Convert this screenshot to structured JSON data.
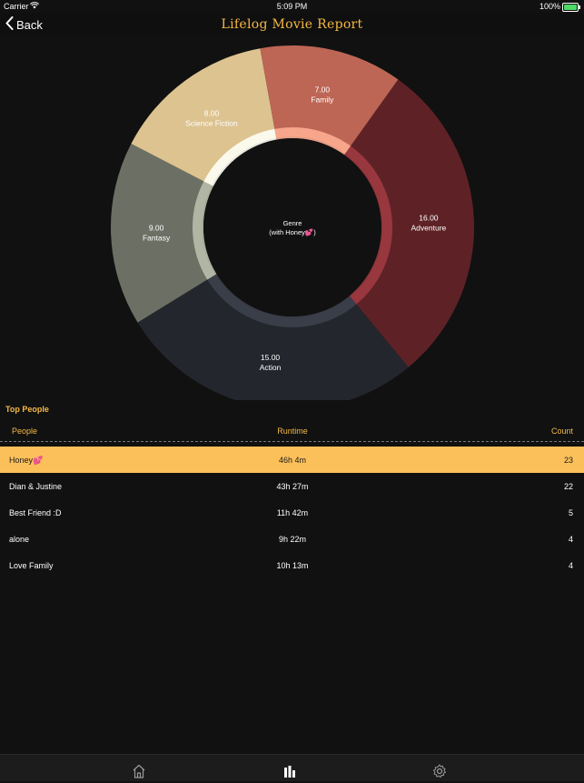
{
  "status_bar": {
    "carrier": "Carrier",
    "time": "5:09 PM",
    "battery": "100%"
  },
  "nav": {
    "back_label": "Back",
    "title": "Lifelog Movie Report"
  },
  "chart_data": {
    "type": "pie",
    "center_label": "Genre",
    "center_sublabel": "(with Honey💕)",
    "slices": [
      {
        "label": "Adventure",
        "value": 16.0,
        "value_text": "16.00",
        "color": "#5e2226"
      },
      {
        "label": "Action",
        "value": 15.0,
        "value_text": "15.00",
        "color": "#24262d"
      },
      {
        "label": "Fantasy",
        "value": 9.0,
        "value_text": "9.00",
        "color": "#6c7064"
      },
      {
        "label": "Science Fiction",
        "value": 8.0,
        "value_text": "8.00",
        "color": "#dcc390"
      },
      {
        "label": "Family",
        "value": 7.0,
        "value_text": "7.00",
        "color": "#bd6655"
      }
    ]
  },
  "top_people": {
    "title": "Top People",
    "headers": {
      "people": "People",
      "runtime": "Runtime",
      "count": "Count"
    },
    "rows": [
      {
        "people": "Honey💕",
        "runtime": "46h 4m",
        "count": "23",
        "selected": true
      },
      {
        "people": "Dian & Justine",
        "runtime": "43h 27m",
        "count": "22",
        "selected": false
      },
      {
        "people": "Best Friend :D",
        "runtime": "11h 42m",
        "count": "5",
        "selected": false
      },
      {
        "people": "alone",
        "runtime": "9h 22m",
        "count": "4",
        "selected": false
      },
      {
        "people": "Love Family",
        "runtime": "10h 13m",
        "count": "4",
        "selected": false
      }
    ]
  },
  "tab_bar": {
    "tabs": [
      {
        "icon": "home-icon"
      },
      {
        "icon": "chart-icon"
      },
      {
        "icon": "gear-icon"
      }
    ],
    "accent": "#f6b945",
    "selected_row_color": "#fcc05a"
  }
}
